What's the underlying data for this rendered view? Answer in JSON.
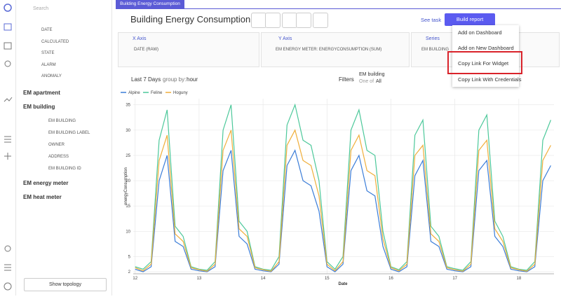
{
  "sidebar": {
    "search": "Search",
    "fields": [
      "DATE",
      "CALCULATED",
      "STATE",
      "ALARM",
      "ANOMALY"
    ],
    "groups": [
      {
        "name": "EM apartment"
      },
      {
        "name": "EM building",
        "items": [
          "EM BUILDING",
          "EM BUILDING LABEL",
          "OWNER",
          "ADDRESS",
          "EM BUILDING ID"
        ]
      },
      {
        "name": "EM energy meter"
      },
      {
        "name": "EM heat meter"
      }
    ],
    "topology_button": "Show topology"
  },
  "tab": "Building Energy Consumption",
  "header": {
    "title": "Building Energy Consumption",
    "see_task": "See task",
    "build_report": "Build report"
  },
  "menu": [
    "Add on Dashboard",
    "Add on New Dashboard",
    "Copy Link For Widget",
    "Copy Link With Credentials"
  ],
  "axes_panels": [
    {
      "title": "X Axis",
      "field": "DATE (RAW)"
    },
    {
      "title": "Y Axis",
      "field": "EM ENERGY METER: ENERGYCONSUMPTION (SUM)"
    },
    {
      "title": "Series",
      "field": "EM BUILDING"
    }
  ],
  "toolbar": {
    "range": "Last 7 Days",
    "group_by": "group by:",
    "group_value": "hour",
    "filters": "Filters",
    "filter_name": "EM building",
    "filter_op": "One of",
    "filter_value": "All"
  },
  "chart_data": {
    "type": "line",
    "x_label": "Date",
    "y_label": "energyConsumption",
    "x": [
      12,
      12.125,
      12.25,
      12.375,
      12.5,
      12.625,
      12.75,
      12.875,
      13,
      13.125,
      13.25,
      13.375,
      13.5,
      13.625,
      13.75,
      13.875,
      14,
      14.125,
      14.25,
      14.375,
      14.5,
      14.625,
      14.75,
      14.875,
      15,
      15.125,
      15.25,
      15.375,
      15.5,
      15.625,
      15.75,
      15.875,
      16,
      16.125,
      16.25,
      16.375,
      16.5,
      16.625,
      16.75,
      16.875,
      17,
      17.125,
      17.25,
      17.375,
      17.5,
      17.625,
      17.75,
      17.875,
      18,
      18.125,
      18.25,
      18.375,
      18.5
    ],
    "series": [
      {
        "name": "Alpine",
        "color": "#3b7dd8",
        "values": [
          2.5,
          2,
          3,
          20,
          25,
          8,
          7,
          2.5,
          2.2,
          2,
          3,
          22,
          26,
          9,
          7.5,
          2.5,
          2.2,
          2,
          3.5,
          23,
          26,
          20,
          19,
          14,
          3,
          2,
          3.5,
          22,
          25,
          18,
          17,
          7,
          2.5,
          2,
          3,
          21,
          24,
          8,
          7,
          2.5,
          2.2,
          2,
          3,
          22,
          24,
          9,
          7,
          2.5,
          2.2,
          2,
          3,
          20,
          23
        ]
      },
      {
        "name": "Feline",
        "color": "#4cc89a",
        "values": [
          3,
          2.5,
          4,
          28,
          34,
          11,
          9,
          3,
          2.5,
          2.3,
          4,
          30,
          35,
          12,
          10,
          3,
          2.5,
          2.3,
          5,
          31,
          35,
          28,
          27,
          20,
          4,
          2.5,
          5,
          30,
          34,
          26,
          25,
          10,
          3,
          2.4,
          4,
          29,
          32,
          11,
          9,
          3,
          2.6,
          2.3,
          4,
          30,
          33,
          12,
          9,
          3,
          2.5,
          2.3,
          4,
          28,
          32
        ]
      },
      {
        "name": "Hoguny",
        "color": "#f0ae3a",
        "values": [
          2.8,
          2.2,
          3.5,
          24,
          29,
          9.5,
          8,
          2.8,
          2.4,
          2.1,
          3.5,
          26,
          30,
          10.5,
          9,
          2.8,
          2.4,
          2.1,
          4,
          27,
          30,
          24,
          23,
          17,
          3.5,
          2.2,
          4,
          26,
          29,
          22,
          21,
          8.5,
          2.8,
          2.2,
          3.5,
          25,
          27,
          9.5,
          8,
          2.8,
          2.4,
          2.1,
          3.5,
          26,
          28,
          10.5,
          8,
          2.8,
          2.4,
          2.1,
          3.5,
          24,
          27
        ]
      }
    ],
    "xlim": [
      11.97,
      18.55
    ],
    "xticks": [
      12,
      13,
      14,
      15,
      16,
      17,
      18
    ],
    "ylim": [
      1.6,
      36.2
    ],
    "yticks": [
      2,
      5,
      10,
      15,
      20,
      25,
      30,
      35
    ],
    "grid": true
  }
}
